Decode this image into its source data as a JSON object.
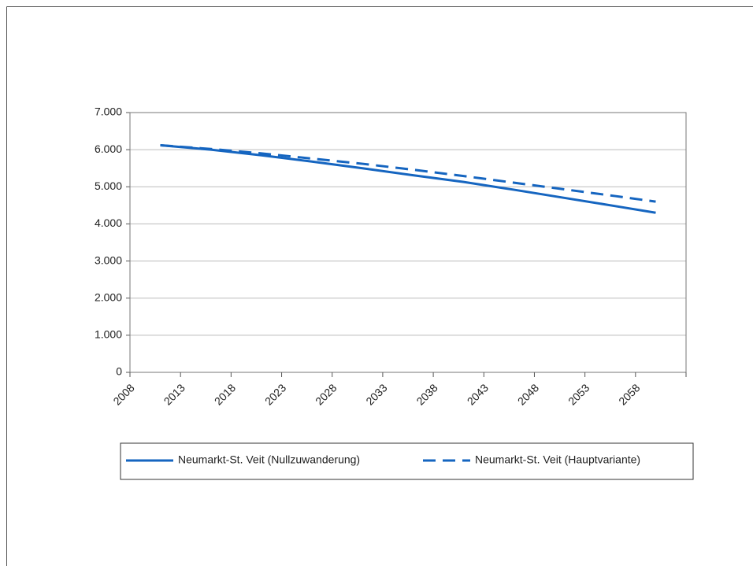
{
  "chart_data": {
    "type": "line",
    "x": [
      2011,
      2016,
      2021,
      2026,
      2031,
      2036,
      2041,
      2046,
      2051,
      2056,
      2060
    ],
    "series": [
      {
        "name": "Neumarkt-St. Veit (Nullzuwanderung)",
        "color": "#1565c0",
        "dash": false,
        "values": [
          6120,
          6000,
          5850,
          5680,
          5500,
          5310,
          5130,
          4920,
          4700,
          4480,
          4300
        ]
      },
      {
        "name": "Neumarkt-St. Veit (Hauptvariante)",
        "color": "#1565c0",
        "dash": true,
        "values": [
          6120,
          6020,
          5900,
          5760,
          5620,
          5460,
          5290,
          5110,
          4930,
          4750,
          4600
        ]
      }
    ],
    "xlim": [
      2008,
      2063
    ],
    "xticks": [
      2008,
      2013,
      2018,
      2023,
      2028,
      2033,
      2038,
      2043,
      2048,
      2053,
      2058
    ],
    "ylim": [
      0,
      7000
    ],
    "yticks": [
      0,
      {
        "value": 1000,
        "label": "1.000"
      },
      {
        "value": 2000,
        "label": "2.000"
      },
      {
        "value": 3000,
        "label": "3.000"
      },
      {
        "value": 4000,
        "label": "4.000"
      },
      {
        "value": 5000,
        "label": "5.000"
      },
      {
        "value": 6000,
        "label": "6.000"
      },
      {
        "value": 7000,
        "label": "7.000"
      }
    ],
    "grid": true,
    "legend": "bottom"
  }
}
